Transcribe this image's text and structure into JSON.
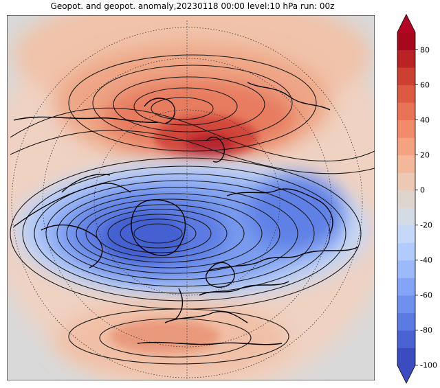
{
  "title": "Geopot. and geopot. anomaly,20230118 00:00 level:10 hPa run: 00z",
  "map": {
    "projection": "north-polar-stereographic",
    "fields": [
      "geopotential contours",
      "geopotential anomaly shading"
    ],
    "background_color": "#d9d9d9",
    "coastline_color": "#000000",
    "anomaly_features": [
      {
        "name": "positive anomaly over Siberia / Pacific",
        "approx_value": 75
      },
      {
        "name": "positive anomaly over Mediterranean / North Africa",
        "approx_value": 30
      },
      {
        "name": "negative anomaly over Greenland / North Atlantic",
        "approx_value": -85
      },
      {
        "name": "negative anomaly over Arctic / North Pacific",
        "approx_value": -60
      }
    ]
  },
  "colorbar": {
    "vmin": -100,
    "vmax": 90,
    "step": 10,
    "tick_labels": [
      "80",
      "60",
      "40",
      "20",
      "0",
      "-20",
      "-40",
      "-60",
      "-80",
      "-100"
    ],
    "extend": "both",
    "colors": [
      "#3b4cc0",
      "#4a63d3",
      "#5b7ae2",
      "#6e90ef",
      "#84a5f7",
      "#9bbafb",
      "#b1cbfc",
      "#c6d8f8",
      "#d5dbe5",
      "#dfd5cf",
      "#ecc9b5",
      "#f3b79a",
      "#f5a282",
      "#f28b6a",
      "#e97355",
      "#dd5a42",
      "#cd3f31",
      "#ba2325",
      "#a7081d"
    ],
    "low_color": "#3b4cc0",
    "high_color": "#b40426"
  }
}
